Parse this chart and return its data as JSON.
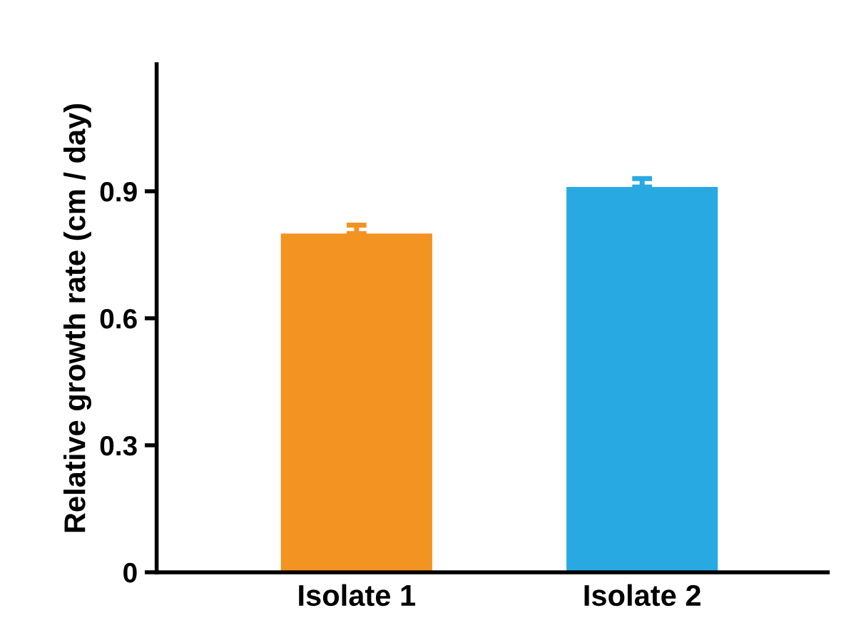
{
  "chart_data": {
    "type": "bar",
    "ylabel": "Relative growth rate (cm / day)",
    "categories": [
      "Isolate 1",
      "Isolate 2"
    ],
    "values": [
      0.8,
      0.91
    ],
    "errors": [
      0.02,
      0.02
    ],
    "colors": [
      "#f39321",
      "#29a9e1"
    ],
    "ylim": [
      0,
      1.2
    ],
    "yticks": [
      0,
      0.3,
      0.6,
      0.9
    ],
    "grid": false,
    "legend": false
  }
}
